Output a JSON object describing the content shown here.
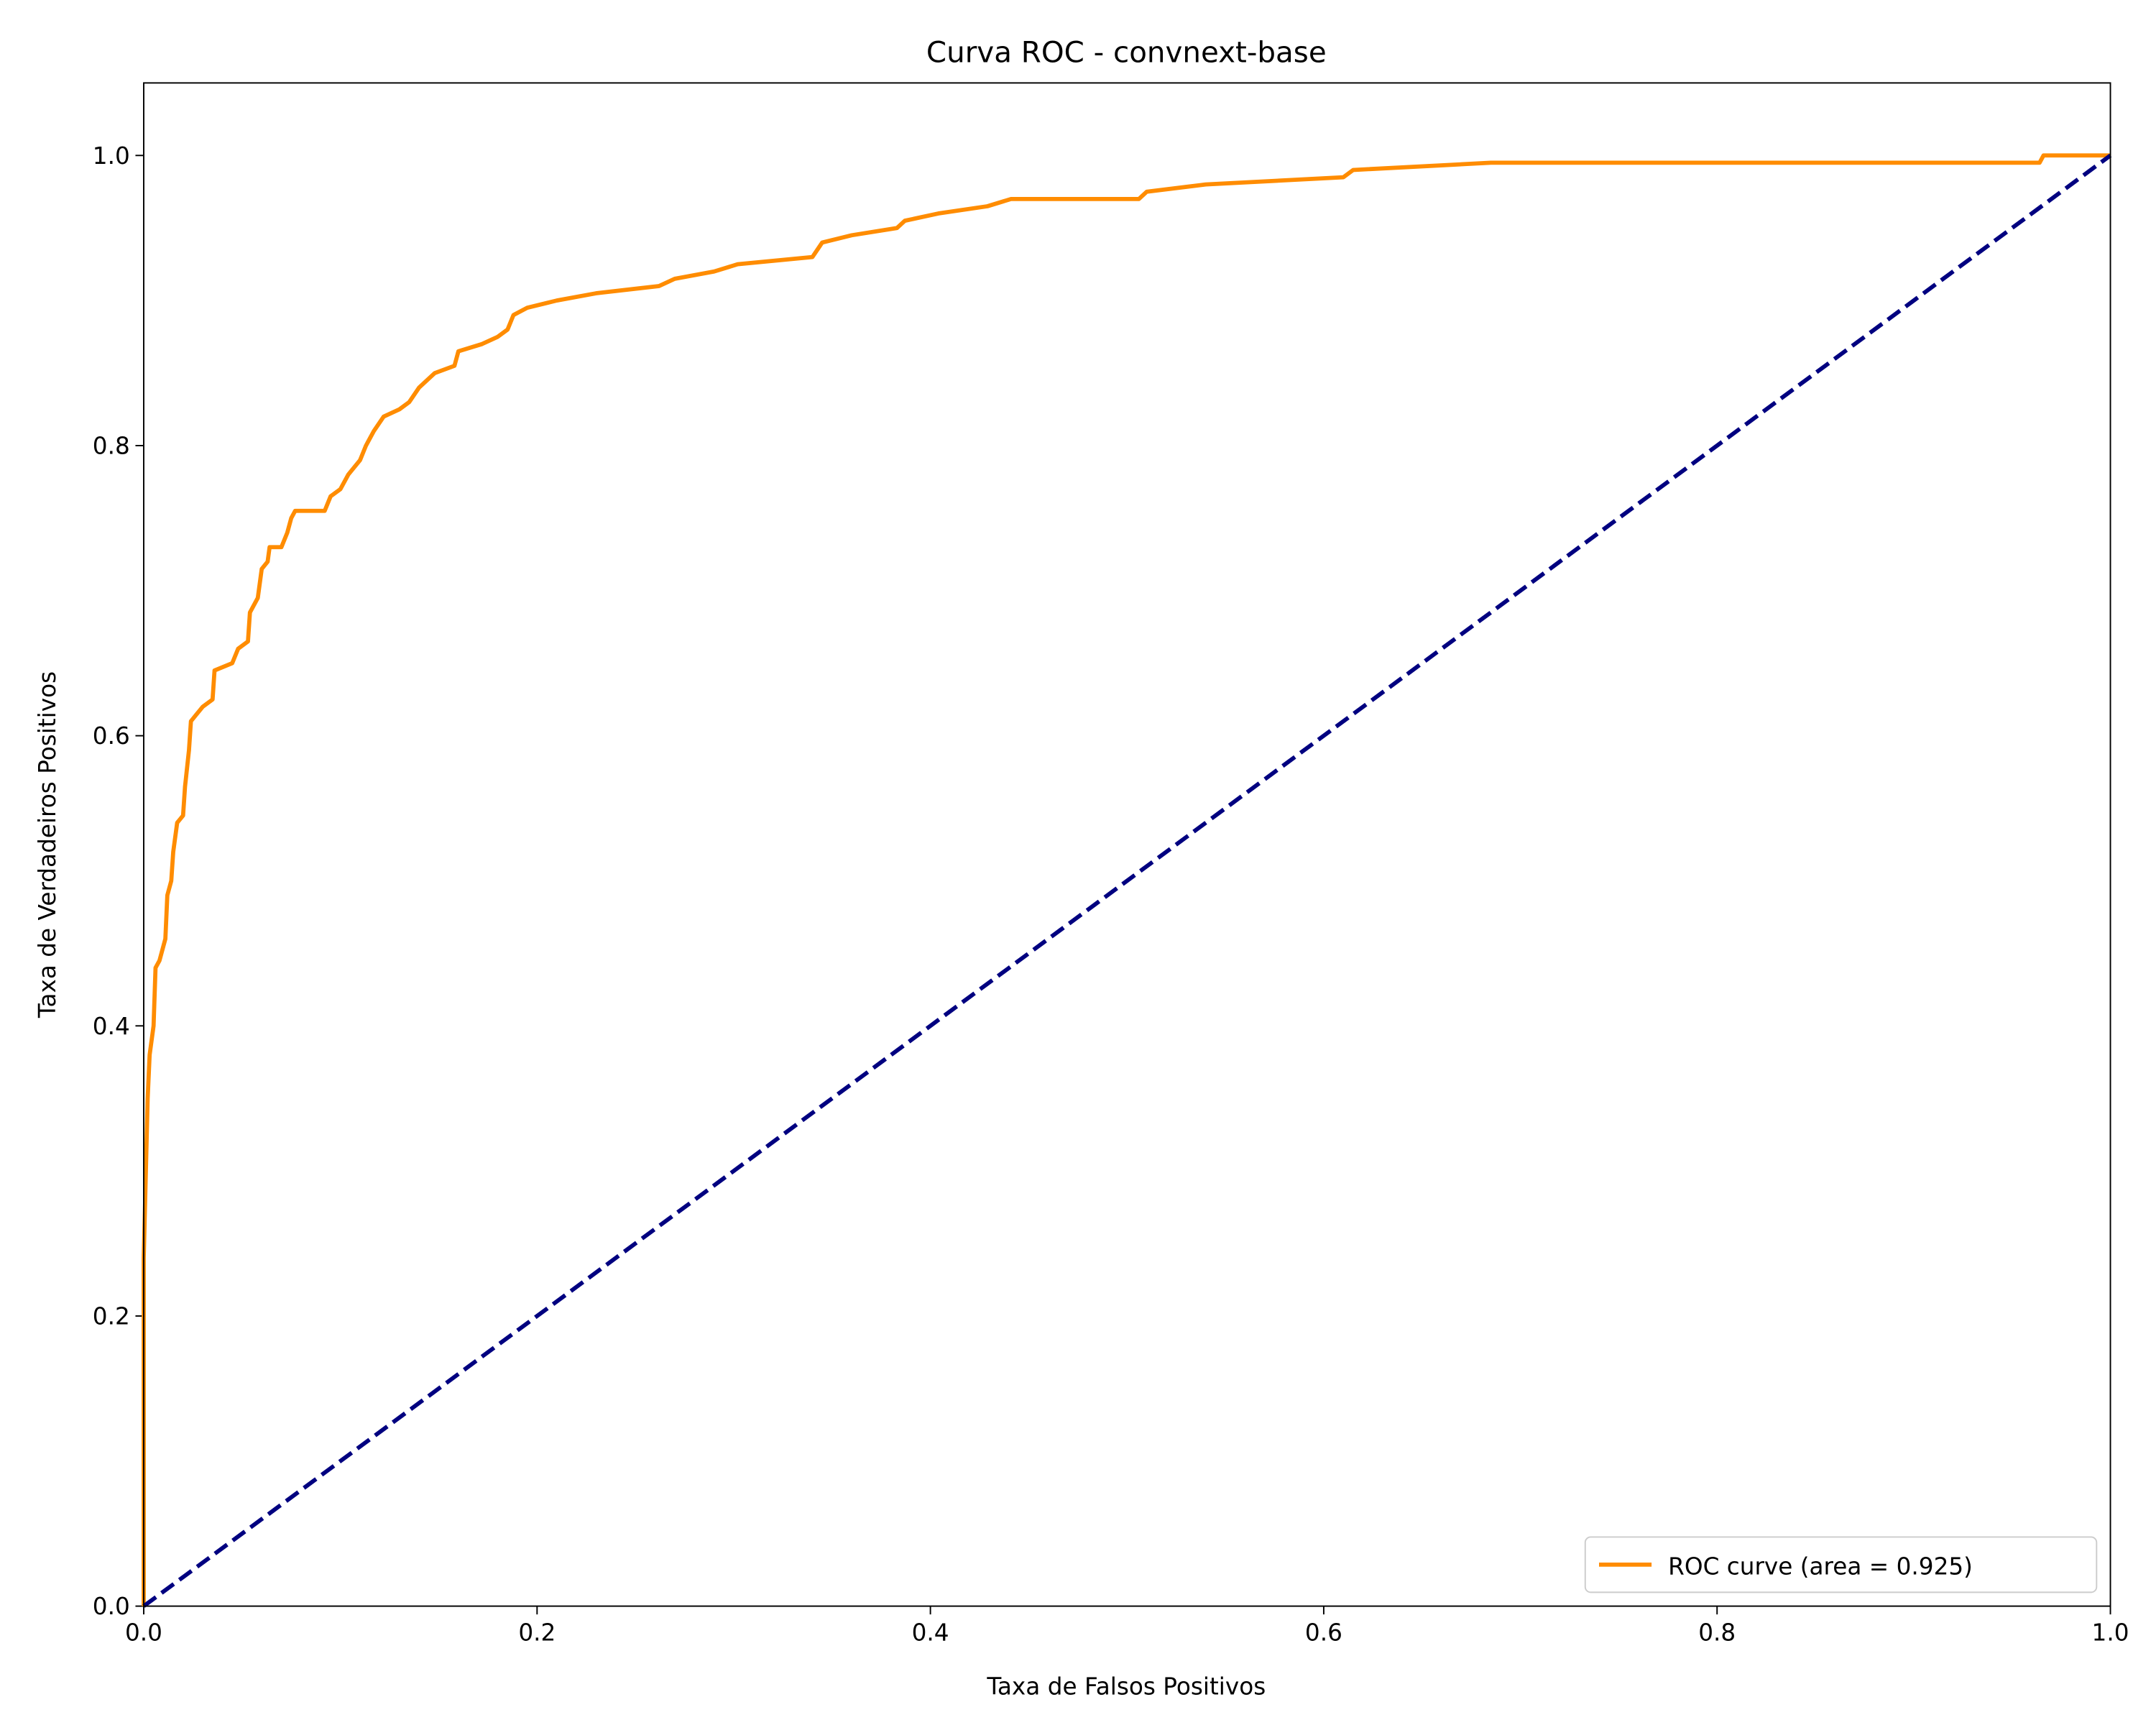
{
  "chart_data": {
    "type": "line",
    "title": "Curva ROC - convnext-base",
    "x_label": "Taxa de Falsos Positivos",
    "y_label": "Taxa de Verdadeiros Positivos",
    "xlim": [
      0,
      1
    ],
    "ylim": [
      0,
      1.05
    ],
    "xticks": [
      {
        "value": 0,
        "label": "0.0"
      },
      0.2,
      0.4,
      0.6,
      0.8,
      {
        "value": 1,
        "label": "1.0"
      }
    ],
    "yticks": [
      {
        "value": 0,
        "label": "0.0"
      },
      0.2,
      0.4,
      0.6,
      0.8,
      {
        "value": 1,
        "label": "1.0"
      }
    ],
    "legend": "lower right",
    "series": [
      {
        "name": "ROC curve (area = 0.925)",
        "color": "#ff8c00",
        "linestyle": "solid",
        "x": [
          0,
          0,
          0.002,
          0.003,
          0.005,
          0.006,
          0.008,
          0.011,
          0.012,
          0.014,
          0.015,
          0.017,
          0.02,
          0.021,
          0.023,
          0.024,
          0.027,
          0.03,
          0.035,
          0.036,
          0.045,
          0.048,
          0.053,
          0.054,
          0.058,
          0.06,
          0.063,
          0.064,
          0.07,
          0.073,
          0.075,
          0.077,
          0.092,
          0.095,
          0.1,
          0.104,
          0.11,
          0.113,
          0.117,
          0.122,
          0.13,
          0.135,
          0.14,
          0.148,
          0.158,
          0.16,
          0.172,
          0.18,
          0.185,
          0.188,
          0.195,
          0.21,
          0.23,
          0.262,
          0.27,
          0.29,
          0.302,
          0.34,
          0.345,
          0.36,
          0.383,
          0.387,
          0.404,
          0.429,
          0.441,
          0.506,
          0.51,
          0.54,
          0.61,
          0.615,
          0.685,
          0.964,
          0.966,
          1
        ],
        "values": [
          0,
          0.24,
          0.35,
          0.38,
          0.4,
          0.44,
          0.445,
          0.46,
          0.49,
          0.5,
          0.52,
          0.54,
          0.545,
          0.565,
          0.59,
          0.61,
          0.615,
          0.62,
          0.625,
          0.645,
          0.65,
          0.66,
          0.665,
          0.685,
          0.695,
          0.715,
          0.72,
          0.73,
          0.73,
          0.74,
          0.75,
          0.755,
          0.755,
          0.765,
          0.77,
          0.78,
          0.79,
          0.8,
          0.81,
          0.82,
          0.825,
          0.83,
          0.84,
          0.85,
          0.855,
          0.865,
          0.87,
          0.875,
          0.88,
          0.89,
          0.895,
          0.9,
          0.905,
          0.91,
          0.915,
          0.92,
          0.925,
          0.93,
          0.94,
          0.945,
          0.95,
          0.955,
          0.96,
          0.965,
          0.97,
          0.97,
          0.975,
          0.98,
          0.985,
          0.99,
          0.995,
          0.995,
          1,
          1
        ]
      },
      {
        "color": "#000080",
        "linestyle": "dashed",
        "x": [
          0,
          1
        ],
        "values": [
          0,
          1
        ]
      }
    ]
  }
}
